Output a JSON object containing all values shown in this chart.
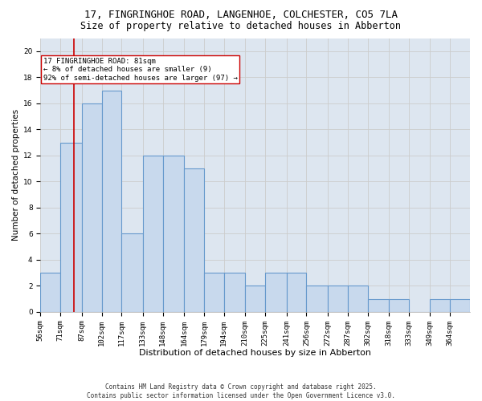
{
  "title1": "17, FINGRINGHOE ROAD, LANGENHOE, COLCHESTER, CO5 7LA",
  "title2": "Size of property relative to detached houses in Abberton",
  "xlabel": "Distribution of detached houses by size in Abberton",
  "ylabel": "Number of detached properties",
  "footer": "Contains HM Land Registry data © Crown copyright and database right 2025.\nContains public sector information licensed under the Open Government Licence v3.0.",
  "bin_labels": [
    "56sqm",
    "71sqm",
    "87sqm",
    "102sqm",
    "117sqm",
    "133sqm",
    "148sqm",
    "164sqm",
    "179sqm",
    "194sqm",
    "210sqm",
    "225sqm",
    "241sqm",
    "256sqm",
    "272sqm",
    "287sqm",
    "302sqm",
    "318sqm",
    "333sqm",
    "349sqm",
    "364sqm"
  ],
  "bin_edges": [
    56,
    71,
    87,
    102,
    117,
    133,
    148,
    164,
    179,
    194,
    210,
    225,
    241,
    256,
    272,
    287,
    302,
    318,
    333,
    349,
    364,
    379
  ],
  "values": [
    3,
    13,
    16,
    17,
    6,
    12,
    12,
    11,
    3,
    3,
    2,
    3,
    3,
    2,
    2,
    2,
    1,
    1,
    0,
    1,
    1
  ],
  "bar_facecolor": "#c8d9ed",
  "bar_edgecolor": "#6699cc",
  "bar_linewidth": 0.8,
  "vline_x": 81,
  "vline_color": "#cc0000",
  "vline_linewidth": 1.2,
  "annotation_text": "17 FINGRINGHOE ROAD: 81sqm\n← 8% of detached houses are smaller (9)\n92% of semi-detached houses are larger (97) →",
  "annotation_box_edgecolor": "#cc0000",
  "annotation_box_facecolor": "white",
  "ylim": [
    0,
    21
  ],
  "yticks": [
    0,
    2,
    4,
    6,
    8,
    10,
    12,
    14,
    16,
    18,
    20
  ],
  "grid_color": "#cccccc",
  "bg_color": "#dde6f0",
  "title1_fontsize": 9,
  "title2_fontsize": 8.5,
  "xlabel_fontsize": 8,
  "ylabel_fontsize": 7.5,
  "tick_fontsize": 6.5,
  "annotation_fontsize": 6.5,
  "footer_fontsize": 5.5
}
